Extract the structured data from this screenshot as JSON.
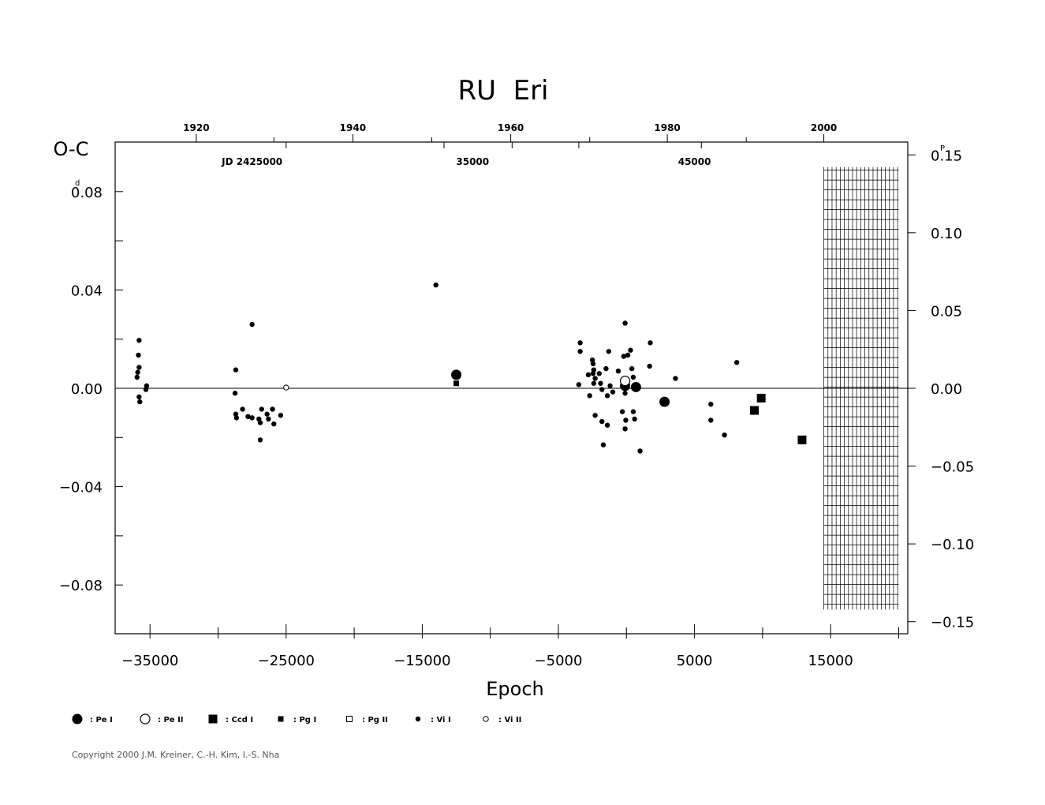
{
  "chart_data": {
    "type": "scatter",
    "title": "RU  Eri",
    "xlabel": "Epoch",
    "ylabel": "O-C",
    "y_unit_left": "d",
    "y_unit_right": "P",
    "xlim": [
      -38000,
      20000
    ],
    "ylim": [
      -0.1,
      0.1
    ],
    "x_ticks": [
      {
        "value": -35000,
        "label": "−35000"
      },
      {
        "value": -25000,
        "label": "−25000"
      },
      {
        "value": -15000,
        "label": "−15000"
      },
      {
        "value": -5000,
        "label": "−5000"
      },
      {
        "value": 5000,
        "label": "5000"
      },
      {
        "value": 15000,
        "label": "15000"
      }
    ],
    "y_ticks_left": [
      {
        "value": 0.08,
        "label": "0.08"
      },
      {
        "value": 0.04,
        "label": "0.04"
      },
      {
        "value": 0.0,
        "label": "0.00"
      },
      {
        "value": -0.04,
        "label": "−0.04"
      },
      {
        "value": -0.08,
        "label": "−0.08"
      }
    ],
    "y_ticks_right": [
      {
        "value": 0.15,
        "label": "0.15"
      },
      {
        "value": 0.1,
        "label": "0.10"
      },
      {
        "value": 0.05,
        "label": "0.05"
      },
      {
        "value": 0.0,
        "label": "0.00"
      },
      {
        "value": -0.05,
        "label": "−0.05"
      },
      {
        "value": -0.1,
        "label": "−0.10"
      },
      {
        "value": -0.15,
        "label": "−0.15"
      }
    ],
    "right_axis_factor": 1.58,
    "year_ticks": [
      {
        "label": "1920",
        "epoch": -31600
      },
      {
        "label": "1940",
        "epoch": -20100
      },
      {
        "label": "1960",
        "epoch": -8500
      },
      {
        "label": "1980",
        "epoch": 3000
      },
      {
        "label": "2000",
        "epoch": 14500
      }
    ],
    "year_minor_epochs": [
      -25900,
      -14300,
      -2700,
      8800
    ],
    "jd_labels": [
      {
        "label": "JD  2425000",
        "epoch": -27500
      },
      {
        "label": "35000",
        "epoch": -11300
      },
      {
        "label": "45000",
        "epoch": 5000
      }
    ],
    "jd_ticks": [
      -25000,
      -13400,
      -8400,
      -3500,
      5500
    ],
    "hatch_region": {
      "x_from": 14500,
      "x_to": 20000,
      "y_from": -0.09,
      "y_to": 0.09
    },
    "legend": [
      {
        "key": "pe1",
        "label": ": Pe I"
      },
      {
        "key": "pe2",
        "label": ": Pe II"
      },
      {
        "key": "ccd1",
        "label": ": Ccd I"
      },
      {
        "key": "pg1",
        "label": ": Pg I"
      },
      {
        "key": "pg2",
        "label": ": Pg II"
      },
      {
        "key": "vi1",
        "label": ": Vi I"
      },
      {
        "key": "vi2",
        "label": ": Vi II"
      }
    ],
    "series": [
      {
        "key": "vi1",
        "points": [
          [
            -35800,
            0.0195
          ],
          [
            -35850,
            0.0135
          ],
          [
            -35800,
            0.0085
          ],
          [
            -35900,
            0.0065
          ],
          [
            -35950,
            0.0045
          ],
          [
            -35800,
            -0.0035
          ],
          [
            -35750,
            -0.0055
          ],
          [
            -35250,
            0.001
          ],
          [
            -35300,
            -0.0005
          ],
          [
            -28700,
            0.0075
          ],
          [
            -28750,
            -0.002
          ],
          [
            -28700,
            -0.0105
          ],
          [
            -28650,
            -0.012
          ],
          [
            -28200,
            -0.0085
          ],
          [
            -27800,
            -0.0115
          ],
          [
            -27500,
            -0.012
          ],
          [
            -27500,
            0.026
          ],
          [
            -27000,
            -0.0125
          ],
          [
            -26900,
            -0.014
          ],
          [
            -26800,
            -0.0085
          ],
          [
            -26900,
            -0.021
          ],
          [
            -26400,
            -0.0105
          ],
          [
            -26300,
            -0.0125
          ],
          [
            -26000,
            -0.0085
          ],
          [
            -25900,
            -0.0145
          ],
          [
            -25400,
            -0.011
          ],
          [
            -14000,
            0.042
          ],
          [
            -3400,
            0.0185
          ],
          [
            -3400,
            0.015
          ],
          [
            -3500,
            0.0015
          ],
          [
            -2800,
            0.0055
          ],
          [
            -2700,
            -0.003
          ],
          [
            -2500,
            0.0115
          ],
          [
            -2450,
            0.01
          ],
          [
            -2400,
            0.0075
          ],
          [
            -2450,
            0.006
          ],
          [
            -2300,
            0.004
          ],
          [
            -2400,
            0.002
          ],
          [
            -2300,
            -0.011
          ],
          [
            -2000,
            0.006
          ],
          [
            -1900,
            0.002
          ],
          [
            -1800,
            -0.0005
          ],
          [
            -1800,
            -0.0135
          ],
          [
            -1700,
            -0.023
          ],
          [
            -1500,
            0.008
          ],
          [
            -1400,
            -0.003
          ],
          [
            -1400,
            -0.015
          ],
          [
            -1300,
            0.015
          ],
          [
            -1200,
            0.001
          ],
          [
            -1000,
            -0.0015
          ],
          [
            -600,
            0.007
          ],
          [
            -300,
            -0.0095
          ],
          [
            -200,
            0.013
          ],
          [
            -150,
            0.003
          ],
          [
            -100,
            0.0265
          ],
          [
            -100,
            -0.002
          ],
          [
            -50,
            -0.013
          ],
          [
            -100,
            -0.0165
          ],
          [
            100,
            0.0135
          ],
          [
            300,
            0.0155
          ],
          [
            400,
            0.008
          ],
          [
            500,
            0.0045
          ],
          [
            500,
            -0.0095
          ],
          [
            600,
            -0.0125
          ],
          [
            1000,
            -0.0255
          ],
          [
            1750,
            0.0185
          ],
          [
            1700,
            0.009
          ],
          [
            3600,
            0.004
          ],
          [
            6200,
            -0.0065
          ],
          [
            6200,
            -0.013
          ],
          [
            7200,
            -0.019
          ],
          [
            8100,
            0.0105
          ]
        ]
      },
      {
        "key": "vi2",
        "points": [
          [
            -25000,
            0.0003
          ]
        ]
      },
      {
        "key": "pe1",
        "points": [
          [
            -12500,
            0.0055
          ],
          [
            -100,
            0.001
          ],
          [
            700,
            0.0005
          ],
          [
            2800,
            -0.0055
          ]
        ]
      },
      {
        "key": "pe2",
        "points": [
          [
            -100,
            0.003
          ]
        ]
      },
      {
        "key": "pg1",
        "points": [
          [
            -12500,
            0.002
          ]
        ]
      },
      {
        "key": "ccd1",
        "points": [
          [
            9400,
            -0.009
          ],
          [
            9900,
            -0.004
          ],
          [
            12900,
            -0.021
          ]
        ]
      }
    ]
  },
  "copyright": "Copyright 2000 J.M. Kreiner, C.-H. Kim, I.-S. Nha"
}
